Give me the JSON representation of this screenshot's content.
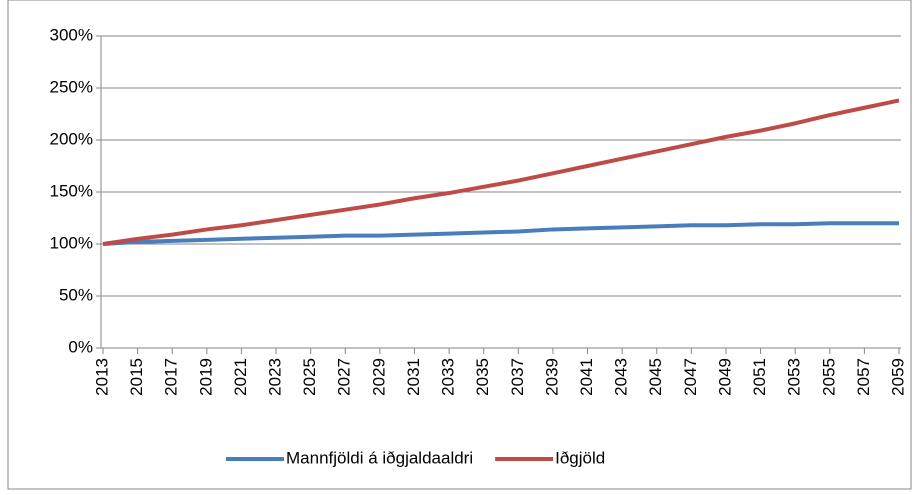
{
  "chart_data": {
    "type": "line",
    "categories": [
      "2013",
      "2015",
      "2017",
      "2019",
      "2021",
      "2023",
      "2025",
      "2027",
      "2029",
      "2031",
      "2033",
      "2035",
      "2037",
      "2039",
      "2041",
      "2043",
      "2045",
      "2047",
      "2049",
      "2051",
      "2053",
      "2055",
      "2057",
      "2059"
    ],
    "series": [
      {
        "name": "Mannfjöldi á iðgjaldaaldri",
        "color": "#4a7ebb",
        "values": [
          100,
          102,
          103,
          104,
          105,
          106,
          107,
          108,
          108,
          109,
          110,
          111,
          112,
          114,
          115,
          116,
          117,
          118,
          118,
          119,
          119,
          120,
          120,
          120
        ]
      },
      {
        "name": "Iðgjöld",
        "color": "#be4b48",
        "values": [
          100,
          105,
          109,
          114,
          118,
          123,
          128,
          133,
          138,
          144,
          149,
          155,
          161,
          168,
          175,
          182,
          189,
          196,
          203,
          209,
          216,
          224,
          231,
          238
        ]
      }
    ],
    "ylim": [
      0,
      300
    ],
    "yticks": [
      {
        "value": 0,
        "label": "0%"
      },
      {
        "value": 50,
        "label": "50%"
      },
      {
        "value": 100,
        "label": "100%"
      },
      {
        "value": 150,
        "label": "150%"
      },
      {
        "value": 200,
        "label": "200%"
      },
      {
        "value": 250,
        "label": "250%"
      },
      {
        "value": 300,
        "label": "300%"
      }
    ],
    "grid": true,
    "legend": "bottom"
  }
}
